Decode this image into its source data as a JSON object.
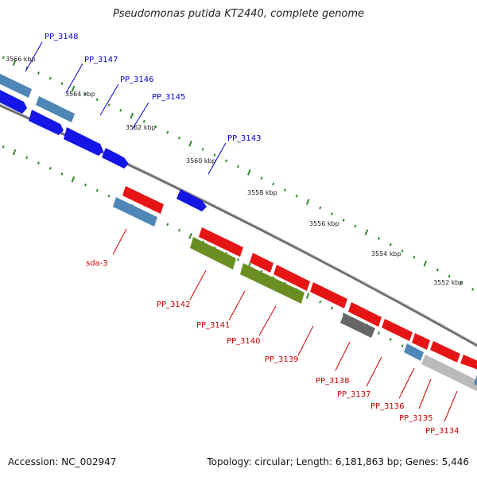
{
  "title": "Pseudomonas putida KT2440, complete genome",
  "footer": {
    "accession": "Accession: NC_002947",
    "stats": "Topology: circular; Length: 6,181,863 bp; Genes: 5,446"
  },
  "colors": {
    "forward_label": "#0000cc",
    "reverse_label": "#cc0000",
    "backbone": "#888888",
    "tick": "#2e8b2e",
    "cds_blue": "#1515e6",
    "cds_steel": "#4f86b8",
    "cds_red": "#e61515",
    "cds_olive": "#6b8e23",
    "cds_dark_gray": "#666666",
    "cds_light_gray": "#bbbbbb"
  },
  "scale_labels": [
    "3566 kbp",
    "3564 kbp",
    "3562 kbp",
    "3560 kbp",
    "3558 kbp",
    "3556 kbp",
    "3554 kbp",
    "3552 kbp"
  ],
  "forward_labels": [
    "PP_3148",
    "PP_3147",
    "PP_3146",
    "PP_3145",
    "PP_3143"
  ],
  "reverse_labels": [
    "sda-3",
    "PP_3142",
    "PP_3141",
    "PP_3140",
    "PP_3139",
    "PP_3138",
    "PP_3137",
    "PP_3136",
    "PP_3135",
    "PP_3134"
  ]
}
